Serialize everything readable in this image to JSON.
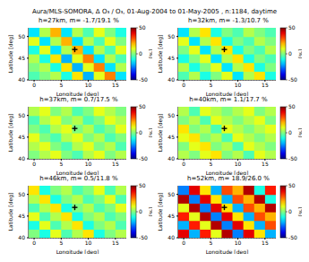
{
  "title": "Aura/MLS-SOMORA, Δ O₃ / O₃, 01-Aug-2004 to 01-May-2005 , n:1184, daytime",
  "chart_data": [
    {
      "type": "heatmap",
      "title": "h=27km, m= -1.7/19.1 %",
      "xlabel": "Longitude [deg]",
      "ylabel": "Latitude [deg]",
      "xlim": [
        -1,
        17
      ],
      "ylim": [
        40,
        52
      ],
      "xticks": [
        0,
        5,
        10,
        15
      ],
      "yticks": [
        40,
        45,
        50
      ],
      "grid": true,
      "cells": {
        "x": [
          0,
          2,
          4,
          6,
          8,
          10,
          12,
          14,
          16
        ],
        "y": [
          41,
          43,
          45,
          47,
          49,
          51
        ],
        "values": [
          [
            -5,
            0,
            5,
            -10,
            15,
            -20,
            10,
            25,
            -15
          ],
          [
            0,
            5,
            -10,
            15,
            -20,
            10,
            25,
            -15,
            5
          ],
          [
            5,
            -10,
            15,
            -20,
            10,
            25,
            -15,
            5,
            -5
          ],
          [
            -10,
            10,
            -15,
            5,
            20,
            -15,
            5,
            -5,
            10
          ],
          [
            10,
            -15,
            5,
            20,
            -15,
            5,
            -5,
            10,
            0
          ],
          [
            -15,
            5,
            20,
            -15,
            5,
            -5,
            10,
            0,
            -10
          ]
        ]
      },
      "colorbar": {
        "range": [
          -50,
          50
        ],
        "ticks": [
          -50,
          0,
          50
        ],
        "label": "[%]"
      },
      "station": {
        "x": 7.5,
        "y": 47,
        "marker": "plus",
        "color": "#000000"
      }
    },
    {
      "type": "heatmap",
      "title": "h=32km, m= -1.3/10.7 %",
      "xlabel": "Longitude [deg]",
      "ylabel": "Latitude [deg]",
      "xlim": [
        -1,
        17
      ],
      "ylim": [
        40,
        52
      ],
      "xticks": [
        0,
        5,
        10,
        15
      ],
      "yticks": [
        40,
        45,
        50
      ],
      "grid": true,
      "cells": {
        "x": [
          0,
          2,
          4,
          6,
          8,
          10,
          12,
          14,
          16
        ],
        "y": [
          41,
          43,
          45,
          47,
          49,
          51
        ],
        "values": [
          [
            -5,
            5,
            -10,
            0,
            10,
            -15,
            5,
            15,
            -10
          ],
          [
            5,
            -10,
            0,
            10,
            -15,
            5,
            15,
            -10,
            0
          ],
          [
            -10,
            0,
            10,
            -15,
            5,
            15,
            -10,
            0,
            -5
          ],
          [
            0,
            10,
            -15,
            5,
            15,
            -10,
            0,
            -5,
            5
          ],
          [
            10,
            -15,
            5,
            15,
            -10,
            0,
            -5,
            5,
            0
          ],
          [
            -15,
            5,
            15,
            -10,
            0,
            -5,
            5,
            0,
            -5
          ]
        ]
      },
      "colorbar": {
        "range": [
          -50,
          50
        ],
        "ticks": [
          -50,
          0,
          50
        ],
        "label": "[%]"
      },
      "station": {
        "x": 7.5,
        "y": 47,
        "marker": "plus",
        "color": "#000000"
      }
    },
    {
      "type": "heatmap",
      "title": "h=37km, m= 0.7/17.5 %",
      "xlabel": "Longitude [deg]",
      "ylabel": "Latitude [deg]",
      "xlim": [
        -1,
        17
      ],
      "ylim": [
        40,
        52
      ],
      "xticks": [
        0,
        5,
        10,
        15
      ],
      "yticks": [
        40,
        45,
        50
      ],
      "grid": true,
      "cells": {
        "x": [
          0,
          2,
          4,
          6,
          8,
          10,
          12,
          14,
          16
        ],
        "y": [
          41,
          43,
          45,
          47,
          49,
          51
        ],
        "values": [
          [
            0,
            5,
            10,
            0,
            -5,
            5,
            10,
            0,
            5
          ],
          [
            5,
            10,
            0,
            -5,
            5,
            10,
            0,
            5,
            -5
          ],
          [
            10,
            0,
            -5,
            5,
            10,
            0,
            5,
            -5,
            0
          ],
          [
            0,
            -5,
            5,
            10,
            0,
            5,
            -5,
            0,
            10
          ],
          [
            -5,
            5,
            10,
            0,
            5,
            -5,
            0,
            10,
            5
          ],
          [
            5,
            10,
            0,
            5,
            -5,
            0,
            10,
            5,
            0
          ]
        ]
      },
      "colorbar": {
        "range": [
          -50,
          50
        ],
        "ticks": [
          -50,
          0,
          50
        ],
        "label": "[%]"
      },
      "station": {
        "x": 7.5,
        "y": 47,
        "marker": "plus",
        "color": "#000000"
      }
    },
    {
      "type": "heatmap",
      "title": "h=40km, m= 1.1/17.7 %",
      "xlabel": "Longitude [deg]",
      "ylabel": "Latitude [deg]",
      "xlim": [
        -1,
        17
      ],
      "ylim": [
        40,
        52
      ],
      "xticks": [
        0,
        5,
        10,
        15
      ],
      "yticks": [
        40,
        45,
        50
      ],
      "grid": true,
      "cells": {
        "x": [
          0,
          2,
          4,
          6,
          8,
          10,
          12,
          14,
          16
        ],
        "y": [
          41,
          43,
          45,
          47,
          49,
          51
        ],
        "values": [
          [
            5,
            0,
            10,
            15,
            0,
            5,
            -5,
            10,
            5
          ],
          [
            0,
            10,
            15,
            0,
            5,
            -5,
            10,
            5,
            0
          ],
          [
            10,
            15,
            0,
            5,
            -5,
            10,
            5,
            0,
            5
          ],
          [
            15,
            0,
            5,
            -5,
            10,
            5,
            0,
            5,
            10
          ],
          [
            0,
            5,
            -5,
            10,
            5,
            0,
            5,
            10,
            0
          ],
          [
            5,
            -5,
            10,
            5,
            0,
            5,
            10,
            0,
            5
          ]
        ]
      },
      "colorbar": {
        "range": [
          -50,
          50
        ],
        "ticks": [
          -50,
          0,
          50
        ],
        "label": "[%]"
      },
      "station": {
        "x": 7.5,
        "y": 47,
        "marker": "plus",
        "color": "#000000"
      }
    },
    {
      "type": "heatmap",
      "title": "h=46km, m= 0.5/11.8 %",
      "xlabel": "Longitude [deg]",
      "ylabel": "Latitude [deg]",
      "xlim": [
        -1,
        17
      ],
      "ylim": [
        40,
        52
      ],
      "xticks": [
        0,
        5,
        10,
        15
      ],
      "yticks": [
        40,
        45,
        50
      ],
      "grid": true,
      "cells": {
        "x": [
          0,
          2,
          4,
          6,
          8,
          10,
          12,
          14,
          16
        ],
        "y": [
          41,
          43,
          45,
          47,
          49,
          51
        ],
        "values": [
          [
            0,
            -10,
            10,
            -5,
            5,
            15,
            -10,
            0,
            5
          ],
          [
            -10,
            10,
            -5,
            5,
            15,
            -10,
            0,
            5,
            -5
          ],
          [
            10,
            -5,
            5,
            15,
            -10,
            0,
            5,
            -5,
            0
          ],
          [
            -5,
            5,
            15,
            -10,
            0,
            5,
            -5,
            0,
            10
          ],
          [
            5,
            15,
            -10,
            0,
            5,
            -5,
            0,
            10,
            -5
          ],
          [
            15,
            -10,
            0,
            5,
            -5,
            0,
            10,
            -5,
            5
          ]
        ]
      },
      "colorbar": {
        "range": [
          -50,
          50
        ],
        "ticks": [
          -50,
          0,
          50
        ],
        "label": "[%]"
      },
      "station": {
        "x": 7.5,
        "y": 47,
        "marker": "plus",
        "color": "#000000"
      }
    },
    {
      "type": "heatmap",
      "title": "h=52km, m= 18.9/26.0 %",
      "xlabel": "Longitude [deg]",
      "ylabel": "Latitude [deg]",
      "xlim": [
        -1,
        17
      ],
      "ylim": [
        40,
        52
      ],
      "xticks": [
        0,
        5,
        10,
        15
      ],
      "yticks": [
        40,
        45,
        50
      ],
      "grid": true,
      "cells": {
        "x": [
          0,
          2,
          4,
          6,
          8,
          10,
          12,
          14,
          16
        ],
        "y": [
          41,
          43,
          45,
          47,
          49,
          51
        ],
        "values": [
          [
            40,
            -20,
            35,
            10,
            45,
            -25,
            40,
            15,
            -20
          ],
          [
            -20,
            35,
            10,
            45,
            -25,
            40,
            15,
            -20,
            30
          ],
          [
            35,
            10,
            45,
            -25,
            40,
            15,
            -20,
            30,
            20
          ],
          [
            10,
            45,
            -25,
            40,
            15,
            -20,
            30,
            20,
            45
          ],
          [
            45,
            -25,
            40,
            15,
            -20,
            30,
            20,
            45,
            -10
          ],
          [
            -25,
            40,
            15,
            -20,
            30,
            20,
            45,
            -10,
            35
          ]
        ]
      },
      "colorbar": {
        "range": [
          -50,
          50
        ],
        "ticks": [
          -50,
          0,
          50
        ],
        "label": "[%]"
      },
      "station": {
        "x": 7.5,
        "y": 47,
        "marker": "plus",
        "color": "#000000"
      }
    }
  ]
}
